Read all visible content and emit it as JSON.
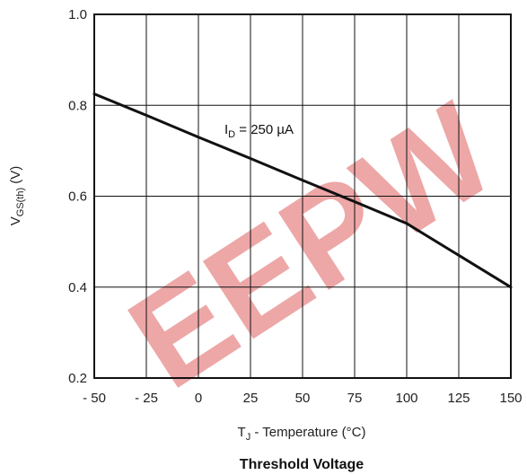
{
  "chart_data": {
    "type": "line",
    "title": "Threshold Voltage",
    "xlabel": {
      "main": "T",
      "sub": "J",
      "rest": " - Temperature (°C)"
    },
    "ylabel": {
      "main": "V",
      "sub": "GS(th)",
      "rest": "  (V)"
    },
    "xlim": [
      -50,
      150
    ],
    "ylim": [
      0.2,
      1.0
    ],
    "xticks": [
      -50,
      -25,
      0,
      25,
      50,
      75,
      100,
      125,
      150
    ],
    "yticks": [
      0.2,
      0.4,
      0.6,
      0.8,
      1.0
    ],
    "xtick_labels": [
      "- 50",
      "- 25",
      "0",
      "25",
      "50",
      "75",
      "100",
      "125",
      "150"
    ],
    "ytick_labels": [
      "0.2",
      "0.4",
      "0.6",
      "0.8",
      "1.0"
    ],
    "grid": true,
    "series": [
      {
        "x": [
          -50,
          -25,
          0,
          25,
          50,
          75,
          100,
          125,
          150
        ],
        "y": [
          0.825,
          0.778,
          0.73,
          0.683,
          0.635,
          0.588,
          0.54,
          0.47,
          0.4
        ]
      }
    ],
    "annotation": {
      "main": "I",
      "sub": "D",
      "rest": " = 250 µA"
    },
    "line_color": "#111111",
    "watermark": "EEPW"
  }
}
